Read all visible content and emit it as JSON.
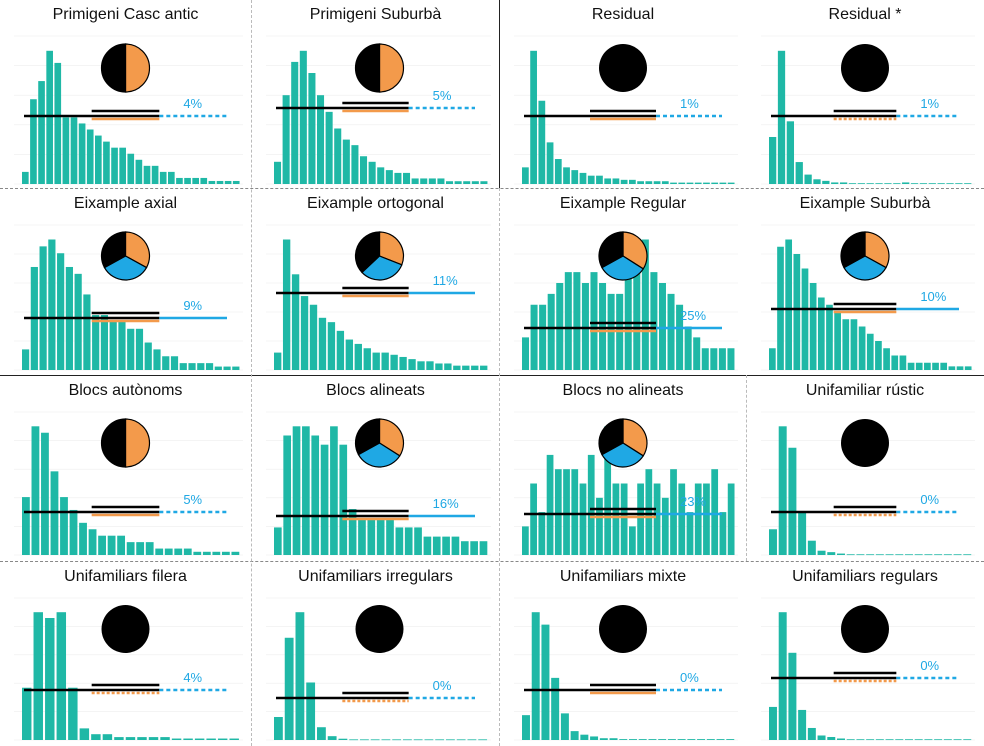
{
  "colors": {
    "bar": "#1fb8a6",
    "line_total": "#000000",
    "line_orange": "#f39a4b",
    "line_blue": "#1fa8e4",
    "pie_black": "#000000",
    "pie_orange": "#f39a4b",
    "pie_blue": "#1fa8e4"
  },
  "chart_data": [
    {
      "type": "bar",
      "title": "Primigeni Casc antic",
      "pie": [
        0.5,
        0.5,
        0
      ],
      "pct_label": "4%",
      "blue_line": "dotted",
      "orange_line": "solid",
      "values": [
        2,
        14,
        17,
        22,
        20,
        11,
        11,
        10,
        9,
        8,
        7,
        6,
        6,
        5,
        4,
        3,
        3,
        2,
        2,
        1,
        1,
        1,
        1,
        0.5,
        0.5,
        0.5,
        0.5
      ]
    },
    {
      "type": "bar",
      "title": "Primigeni Suburbà",
      "pie": [
        0.5,
        0.5,
        0
      ],
      "pct_label": "5%",
      "blue_line": "dotted",
      "orange_line": "solid",
      "values": [
        4,
        16,
        22,
        24,
        20,
        16,
        13,
        10,
        8,
        7,
        5,
        4,
        3,
        2.5,
        2,
        2,
        1,
        1,
        1,
        1,
        0.5,
        0.5,
        0.5,
        0.5,
        0.5
      ]
    },
    {
      "type": "bar",
      "title": "Residual",
      "pie": [
        1,
        0,
        0
      ],
      "pct_label": "1%",
      "blue_line": "dotted",
      "orange_line": "solid",
      "values": [
        6,
        48,
        30,
        15,
        9,
        6,
        5,
        4,
        3,
        3,
        2,
        2,
        1.5,
        1.5,
        1,
        1,
        1,
        1,
        0.5,
        0.5,
        0.5,
        0.5,
        0.5,
        0.5,
        0.5,
        0.5
      ]
    },
    {
      "type": "bar",
      "title": "Residual *",
      "pie": [
        1,
        0,
        0
      ],
      "pct_label": "1%",
      "blue_line": "dotted",
      "orange_line": "dotted",
      "values": [
        30,
        85,
        40,
        14,
        6,
        3,
        2,
        1,
        1,
        0.5,
        0.5,
        0.5,
        0.5,
        0.5,
        0.5,
        1,
        0.5,
        0.5,
        0.5,
        0.5,
        0.5,
        0.5,
        0.5
      ]
    },
    {
      "type": "bar",
      "title": "Eixample axial",
      "pie": [
        0.33,
        0.33,
        0.34
      ],
      "pct_label": "9%",
      "blue_line": "solid",
      "orange_line": "solid",
      "values": [
        3,
        15,
        18,
        19,
        17,
        15,
        14,
        11,
        8,
        8,
        7,
        7,
        6,
        6,
        4,
        3,
        2,
        2,
        1,
        1,
        1,
        1,
        0.5,
        0.5,
        0.5
      ]
    },
    {
      "type": "bar",
      "title": "Eixample ortogonal",
      "pie": [
        0.37,
        0.31,
        0.32
      ],
      "pct_label": "11%",
      "blue_line": "solid",
      "orange_line": "solid",
      "values": [
        4,
        30,
        22,
        17,
        15,
        12,
        11,
        9,
        7,
        6,
        5,
        4,
        4,
        3.5,
        3,
        2.5,
        2,
        2,
        1.5,
        1.5,
        1,
        1,
        1,
        1
      ]
    },
    {
      "type": "bar",
      "title": "Eixample Regular",
      "pie": [
        0.33,
        0.34,
        0.33
      ],
      "pct_label": "25%",
      "blue_line": "solid",
      "orange_line": "solid",
      "values": [
        3,
        6,
        6,
        7,
        8,
        9,
        9,
        8,
        9,
        8,
        7,
        7,
        12,
        10,
        12,
        9,
        8,
        7,
        6,
        4,
        3,
        2,
        2,
        2,
        2
      ]
    },
    {
      "type": "bar",
      "title": "Eixample Suburbà",
      "pie": [
        0.33,
        0.33,
        0.34
      ],
      "pct_label": "10%",
      "blue_line": "solid",
      "orange_line": "solid",
      "values": [
        3,
        17,
        18,
        16,
        14,
        12,
        10,
        9,
        8,
        7,
        7,
        6,
        5,
        4,
        3,
        2,
        2,
        1,
        1,
        1,
        1,
        1,
        0.5,
        0.5,
        0.5
      ]
    },
    {
      "type": "bar",
      "title": "Blocs autònoms",
      "pie": [
        0.5,
        0.5,
        0
      ],
      "pct_label": "5%",
      "blue_line": "dotted",
      "orange_line": "solid",
      "values": [
        9,
        20,
        19,
        13,
        9,
        7,
        5,
        4,
        3,
        3,
        3,
        2,
        2,
        2,
        1,
        1,
        1,
        1,
        0.5,
        0.5,
        0.5,
        0.5,
        0.5
      ]
    },
    {
      "type": "bar",
      "title": "Blocs alineats",
      "pie": [
        0.33,
        0.34,
        0.33
      ],
      "pct_label": "16%",
      "blue_line": "solid",
      "orange_line": "solid",
      "values": [
        3,
        13,
        14,
        14,
        13,
        12,
        14,
        12,
        5,
        4,
        4,
        4,
        4,
        3,
        3,
        3,
        2,
        2,
        2,
        2,
        1.5,
        1.5,
        1.5
      ]
    },
    {
      "type": "bar",
      "title": "Blocs no alineats",
      "pie": [
        0.33,
        0.34,
        0.33
      ],
      "pct_label": "23%",
      "blue_line": "solid",
      "orange_line": "solid",
      "values": [
        2,
        5,
        3,
        7,
        6,
        6,
        6,
        5,
        7,
        4,
        9,
        5,
        5,
        2,
        5,
        6,
        5,
        4,
        6,
        5,
        3,
        5,
        5,
        6,
        3,
        5
      ]
    },
    {
      "type": "bar",
      "title": "Unifamiliar rústic",
      "pie": [
        1,
        0,
        0
      ],
      "pct_label": "0%",
      "blue_line": "dotted",
      "orange_line": "dotted",
      "values": [
        18,
        90,
        75,
        30,
        10,
        3,
        2,
        1,
        0.5,
        0.5,
        0.5,
        0.5,
        0.5,
        0.5,
        0.5,
        0.5,
        0.5,
        0.5,
        0.5,
        0.5,
        0.5
      ]
    },
    {
      "type": "bar",
      "title": "Unifamiliars filera",
      "pie": [
        1,
        0,
        0
      ],
      "pct_label": "4%",
      "blue_line": "dotted",
      "orange_line": "dotted",
      "values": [
        18,
        44,
        42,
        44,
        18,
        4,
        2,
        2,
        1,
        1,
        1,
        1,
        1,
        0.5,
        0.5,
        0.5,
        0.5,
        0.5,
        0.5
      ]
    },
    {
      "type": "bar",
      "title": "Unifamiliars irregulars",
      "pie": [
        1,
        0,
        0
      ],
      "pct_label": "0%",
      "blue_line": "dotted",
      "orange_line": "dotted",
      "values": [
        18,
        80,
        100,
        45,
        10,
        3,
        1,
        0.5,
        0.5,
        0.5,
        0.5,
        0.5,
        0.5,
        0.5,
        0.5,
        0.5,
        0.5,
        0.5,
        0.5,
        0.5
      ]
    },
    {
      "type": "bar",
      "title": "Unifamiliars mixte",
      "pie": [
        1,
        0,
        0
      ],
      "pct_label": "0%",
      "blue_line": "dotted",
      "orange_line": "solid",
      "values": [
        14,
        72,
        65,
        35,
        15,
        5,
        3,
        2,
        1,
        1,
        0.5,
        0.5,
        0.5,
        0.5,
        0.5,
        0.5,
        0.5,
        0.5,
        0.5,
        0.5,
        0.5,
        0.5
      ]
    },
    {
      "type": "bar",
      "title": "Unifamiliars regulars",
      "pie": [
        1,
        0,
        0
      ],
      "pct_label": "0%",
      "blue_line": "dotted",
      "orange_line": "dotted",
      "values": [
        22,
        85,
        58,
        20,
        8,
        3,
        2,
        1,
        0.5,
        0.5,
        0.5,
        0.5,
        0.5,
        0.5,
        0.5,
        0.5,
        0.5,
        0.5,
        0.5,
        0.5,
        0.5
      ]
    }
  ]
}
